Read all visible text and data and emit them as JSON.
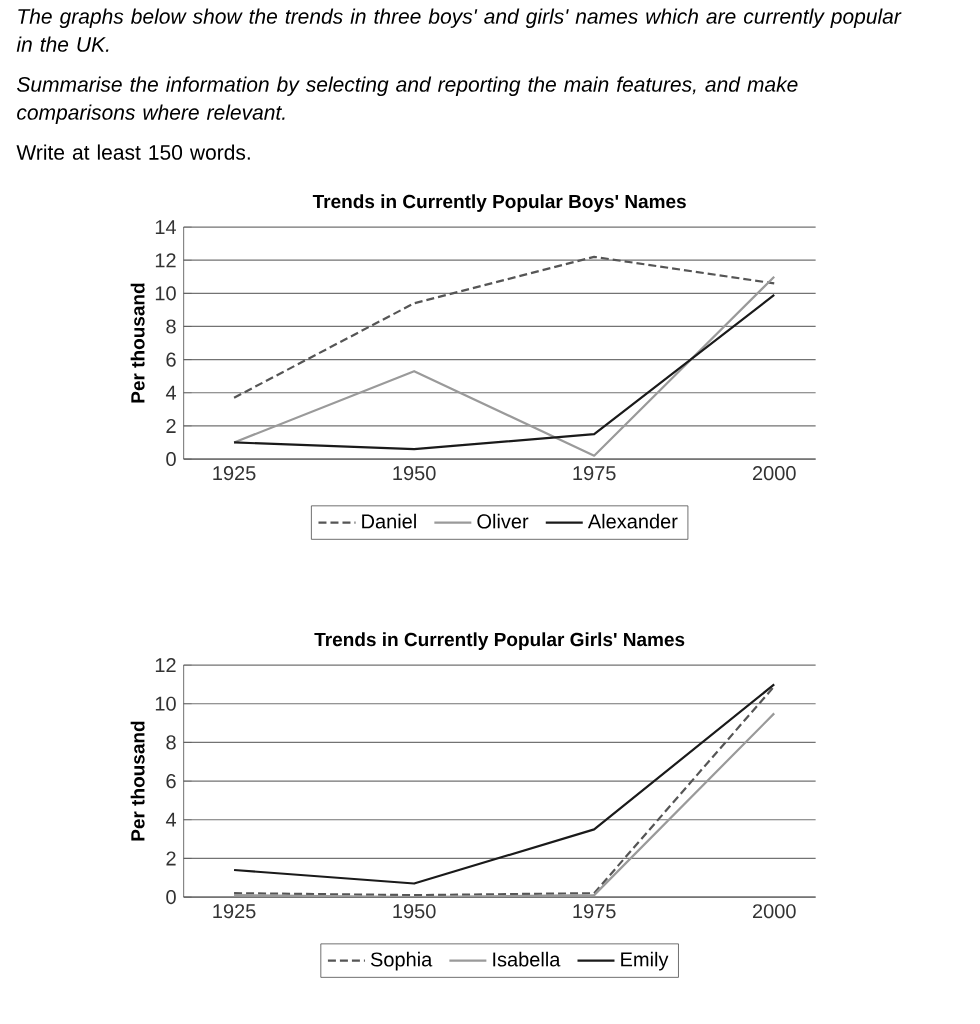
{
  "chart_data": [
    {
      "type": "line",
      "title": "Trends in Currently Popular Boys' Names",
      "ylabel": "Per thousand",
      "annotations": [
        "The graphs below show the trends in three boys' and girls' names which are currently popular in the UK.",
        "Summarise the information by selecting and reporting the main features, and make comparisons where relevant.",
        "Write at least 150 words."
      ],
      "categories": [
        "1925",
        "1950",
        "1975",
        "2000"
      ],
      "series": [
        {
          "name": "Daniel",
          "color": "#555555",
          "line_style": "dashed",
          "values": [
            3.7,
            9.4,
            12.2,
            10.6
          ]
        },
        {
          "name": "Oliver",
          "color": "#9a9a9a",
          "line_style": "solid",
          "values": [
            1.0,
            5.3,
            0.2,
            11.0
          ]
        },
        {
          "name": "Alexander",
          "color": "#1a1a1a",
          "line_style": "solid",
          "values": [
            1.0,
            0.6,
            1.5,
            9.9
          ]
        }
      ],
      "ylim": [
        0,
        14
      ],
      "yticks": [
        0,
        2,
        4,
        6,
        8,
        10,
        12,
        14
      ],
      "grid": "y",
      "legend": "bottom"
    },
    {
      "type": "line",
      "title": "Trends in Currently Popular Girls' Names",
      "ylabel": "Per thousand",
      "categories": [
        "1925",
        "1950",
        "1975",
        "2000"
      ],
      "series": [
        {
          "name": "Sophia",
          "color": "#555555",
          "line_style": "dashed",
          "values": [
            0.2,
            0.1,
            0.2,
            10.9
          ]
        },
        {
          "name": "Isabella",
          "color": "#9a9a9a",
          "line_style": "solid",
          "values": [
            0.1,
            0.0,
            0.1,
            9.5
          ]
        },
        {
          "name": "Emily",
          "color": "#1a1a1a",
          "line_style": "solid",
          "values": [
            1.4,
            0.7,
            3.5,
            11.0
          ]
        }
      ],
      "ylim": [
        0,
        12
      ],
      "yticks": [
        0,
        2,
        4,
        6,
        8,
        10,
        12
      ],
      "grid": "y",
      "legend": "bottom"
    }
  ]
}
